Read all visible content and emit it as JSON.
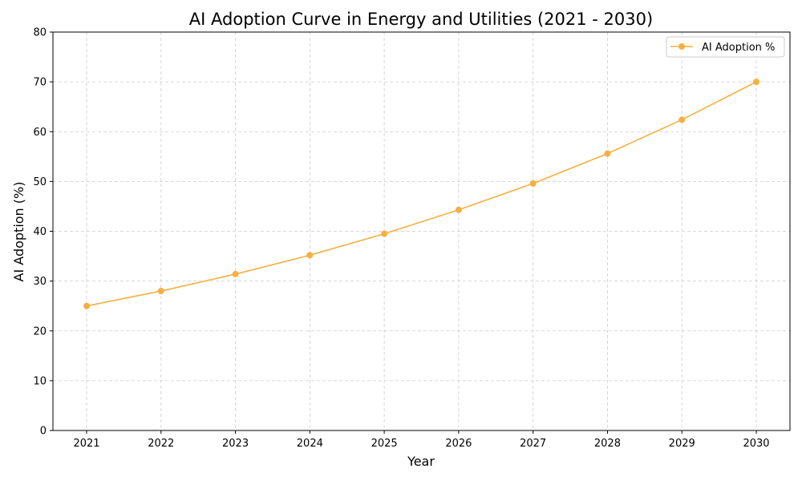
{
  "chart_data": {
    "type": "line",
    "title": "AI Adoption Curve in Energy and Utilities (2021 - 2030)",
    "xlabel": "Year",
    "ylabel": "AI Adoption (%)",
    "x": [
      2021,
      2022,
      2023,
      2024,
      2025,
      2026,
      2027,
      2028,
      2029,
      2030
    ],
    "series": [
      {
        "name": "AI Adoption %",
        "color": "#f5b041",
        "marker": "circle",
        "values": [
          25.0,
          28.0,
          31.4,
          35.2,
          39.5,
          44.3,
          49.6,
          55.6,
          62.4,
          70.0
        ]
      }
    ],
    "ylim": [
      0,
      80
    ],
    "yticks": [
      0,
      10,
      20,
      30,
      40,
      50,
      60,
      70,
      80
    ],
    "grid": true,
    "grid_style": "dashed",
    "legend_position": "top-right"
  }
}
